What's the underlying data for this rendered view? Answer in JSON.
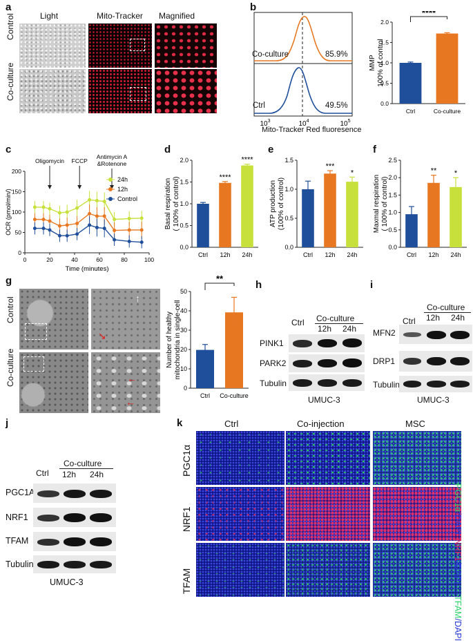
{
  "panels": {
    "a": "a",
    "b": "b",
    "c": "c",
    "d": "d",
    "e": "e",
    "f": "f",
    "g": "g",
    "h": "h",
    "i": "i",
    "j": "j",
    "k": "k"
  },
  "a": {
    "cols": [
      "Light",
      "Mito-Tracker",
      "Magnified"
    ],
    "rows": [
      "Control",
      "Co-culture"
    ]
  },
  "b_flow": {
    "xlabel": "Mito-Tracker Red fluoresence",
    "ticks": [
      {
        "base": "10",
        "exp": "3"
      },
      {
        "base": "10",
        "exp": "4"
      },
      {
        "base": "10",
        "exp": "5"
      }
    ],
    "rows": [
      {
        "name": "Co-culture",
        "pct": "85.9%",
        "color": "#E87722"
      },
      {
        "name": "Ctrl",
        "pct": "49.5%",
        "color": "#1F4E9A"
      }
    ]
  },
  "b_bar": {
    "ylabel": "MMP",
    "ylabel2": "100% of control",
    "sig": "****",
    "chart_data": {
      "type": "bar",
      "categories": [
        "Ctrl",
        "Co-culture"
      ],
      "values": [
        1.0,
        1.72
      ],
      "errors": [
        0.02,
        0.02
      ],
      "ylim": [
        0,
        2.0
      ],
      "yticks": [
        "0.0",
        "0.5",
        "1.0",
        "1.5",
        "2.0"
      ],
      "colors": [
        "#1F4E9A",
        "#E87722"
      ]
    }
  },
  "c": {
    "annotations": [
      "Oligomycin",
      "FCCP",
      "Antimycin A",
      "&Rotenone"
    ],
    "xlabel": "Time (minutes)",
    "ylabel": "OCR (pmol/min/)",
    "chart_data": {
      "type": "line",
      "x": [
        8,
        15,
        20,
        28,
        34,
        42,
        52,
        58,
        64,
        72,
        84,
        94
      ],
      "xlim": [
        0,
        100
      ],
      "ylim": [
        0,
        200
      ],
      "xticks": [
        "0",
        "20",
        "40",
        "60",
        "80",
        "100"
      ],
      "yticks": [
        "0",
        "50",
        "100",
        "150",
        "200"
      ],
      "series": [
        {
          "name": "24h",
          "color": "#C8E03C",
          "values": [
            112,
            112,
            108,
            98,
            100,
            110,
            130,
            128,
            126,
            82,
            84,
            85
          ],
          "err": [
            15,
            15,
            15,
            18,
            18,
            20,
            22,
            22,
            22,
            18,
            18,
            18
          ]
        },
        {
          "name": "12h",
          "color": "#E87722",
          "values": [
            82,
            82,
            78,
            66,
            68,
            72,
            96,
            90,
            90,
            55,
            56,
            56
          ],
          "err": [
            15,
            15,
            15,
            18,
            18,
            18,
            22,
            22,
            22,
            20,
            20,
            20
          ]
        },
        {
          "name": "Control",
          "color": "#1F4E9A",
          "values": [
            60,
            60,
            56,
            42,
            42,
            46,
            68,
            62,
            60,
            32,
            28,
            26
          ],
          "err": [
            15,
            15,
            15,
            15,
            15,
            15,
            22,
            22,
            22,
            15,
            15,
            15
          ]
        }
      ]
    }
  },
  "d": {
    "ylabel": "Basal respiration",
    "ylabel2": "( 100% of control)",
    "sigs": [
      "",
      "****",
      "****"
    ],
    "chart_data": {
      "type": "bar",
      "categories": [
        "Ctrl",
        "12h",
        "24h"
      ],
      "values": [
        1.0,
        1.48,
        1.88
      ],
      "errors": [
        0.03,
        0.03,
        0.03
      ],
      "ylim": [
        0,
        2.0
      ],
      "yticks": [
        "0.0",
        "0.5",
        "1.0",
        "1.5",
        "2.0"
      ],
      "colors": [
        "#1F4E9A",
        "#E87722",
        "#C8E03C"
      ]
    }
  },
  "e": {
    "ylabel": "ATP production",
    "ylabel2": "(100% of control)",
    "sigs": [
      "",
      "***",
      "*"
    ],
    "chart_data": {
      "type": "bar",
      "categories": [
        "Ctrl",
        "12h",
        "24h"
      ],
      "values": [
        1.0,
        1.27,
        1.13
      ],
      "errors": [
        0.14,
        0.05,
        0.08
      ],
      "ylim": [
        0,
        1.5
      ],
      "yticks": [
        "0.0",
        "0.5",
        "1.0",
        "1.5"
      ],
      "colors": [
        "#1F4E9A",
        "#E87722",
        "#C8E03C"
      ]
    }
  },
  "f": {
    "ylabel": "Maxmal respiration",
    "ylabel2": "( 100% of control)",
    "sigs": [
      "",
      "**",
      "*"
    ],
    "chart_data": {
      "type": "bar",
      "categories": [
        "Ctrl",
        "12h",
        "24h"
      ],
      "values": [
        0.95,
        1.85,
        1.73
      ],
      "errors": [
        0.22,
        0.22,
        0.27
      ],
      "ylim": [
        0,
        2.5
      ],
      "yticks": [
        "0.0",
        "0.5",
        "1.0",
        "1.5",
        "2.0",
        "2.5"
      ],
      "colors": [
        "#1F4E9A",
        "#E87722",
        "#C8E03C"
      ]
    }
  },
  "g": {
    "rows": [
      "Control",
      "Co-culture"
    ],
    "ylabel": "Number of healthy",
    "ylabel2": "mitochondria in single-cell",
    "sig": "**",
    "chart_data": {
      "type": "bar",
      "categories": [
        "Ctrl",
        "Co-culture"
      ],
      "values": [
        19.8,
        39.2
      ],
      "errors": [
        2.8,
        7.8
      ],
      "ylim": [
        0,
        50
      ],
      "yticks": [
        "0",
        "10",
        "20",
        "30",
        "40",
        "50"
      ],
      "colors": [
        "#1F4E9A",
        "#E87722"
      ]
    }
  },
  "h": {
    "ctrl": "Ctrl",
    "group": "Co-culture",
    "t1": "12h",
    "t2": "24h",
    "rows": [
      "PINK1",
      "PARK2",
      "Tubulin"
    ],
    "cell": "UMUC-3"
  },
  "i": {
    "ctrl": "Ctrl",
    "group": "Co-culture",
    "t1": "12h",
    "t2": "24h",
    "rows": [
      "MFN2",
      "DRP1",
      "Tubulin"
    ],
    "cell": "UMUC-3"
  },
  "j": {
    "ctrl": "Ctrl",
    "group": "Co-culture",
    "t1": "12h",
    "t2": "24h",
    "rows": [
      "PGC1A",
      "NRF1",
      "TFAM",
      "Tubulin"
    ],
    "cell": "UMUC-3"
  },
  "k": {
    "cols": [
      "Ctrl",
      "Co-injection",
      "MSC"
    ],
    "rows": [
      "PGC1α",
      "NRF1",
      "TFAM"
    ],
    "side": [
      {
        "a": "PGC1α",
        "b": "/DAPI",
        "ca": "#2fd36b"
      },
      {
        "a": "NRF1",
        "b": "/DAPI",
        "ca": "#e0245e"
      },
      {
        "a": "TFAM",
        "b": "/DAPI",
        "ca": "#2fd36b"
      }
    ]
  }
}
